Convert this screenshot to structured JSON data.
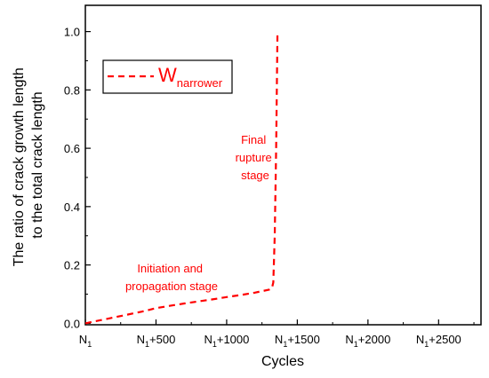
{
  "chart_data": {
    "type": "line",
    "title": "",
    "xlabel": "Cycles",
    "ylabel_lines": [
      "The ratio of crack growth length",
      "to the total crack length"
    ],
    "xlim": [
      0,
      2800
    ],
    "ylim": [
      0,
      1.0
    ],
    "x_ticks": [
      {
        "value": 0,
        "base": "N",
        "sub": "1",
        "suffix": ""
      },
      {
        "value": 500,
        "base": "N",
        "sub": "1",
        "suffix": "+500"
      },
      {
        "value": 1000,
        "base": "N",
        "sub": "1",
        "suffix": "+1000"
      },
      {
        "value": 1500,
        "base": "N",
        "sub": "1",
        "suffix": "+1500"
      },
      {
        "value": 2000,
        "base": "N",
        "sub": "1",
        "suffix": "+2000"
      },
      {
        "value": 2500,
        "base": "N",
        "sub": "1",
        "suffix": "+2500"
      }
    ],
    "y_ticks": [
      {
        "value": 0.0,
        "label": "0.0"
      },
      {
        "value": 0.2,
        "label": "0.2"
      },
      {
        "value": 0.4,
        "label": "0.4"
      },
      {
        "value": 0.6,
        "label": "0.6"
      },
      {
        "value": 0.8,
        "label": "0.8"
      },
      {
        "value": 1.0,
        "label": "1.0"
      }
    ],
    "series": [
      {
        "name": "W",
        "name_sub": "narrower",
        "color": "#ff0000",
        "style": "dashed",
        "x": [
          0,
          100,
          200,
          300,
          400,
          500,
          600,
          700,
          800,
          900,
          1000,
          1100,
          1200,
          1300,
          1320,
          1330,
          1340,
          1350,
          1360
        ],
        "y": [
          0.0,
          0.01,
          0.02,
          0.03,
          0.04,
          0.052,
          0.06,
          0.068,
          0.075,
          0.082,
          0.09,
          0.097,
          0.105,
          0.115,
          0.12,
          0.14,
          0.3,
          0.6,
          1.0
        ]
      }
    ],
    "annotations": [
      {
        "lines": [
          "Final",
          "rupture",
          "stage"
        ],
        "color": "#ff0000"
      },
      {
        "lines": [
          "Initiation and",
          "propagation stage"
        ],
        "color": "#ff0000"
      }
    ],
    "legend": {
      "position": "top-left",
      "entries": [
        {
          "label": "W",
          "sub": "narrower"
        }
      ]
    },
    "grid": false
  }
}
